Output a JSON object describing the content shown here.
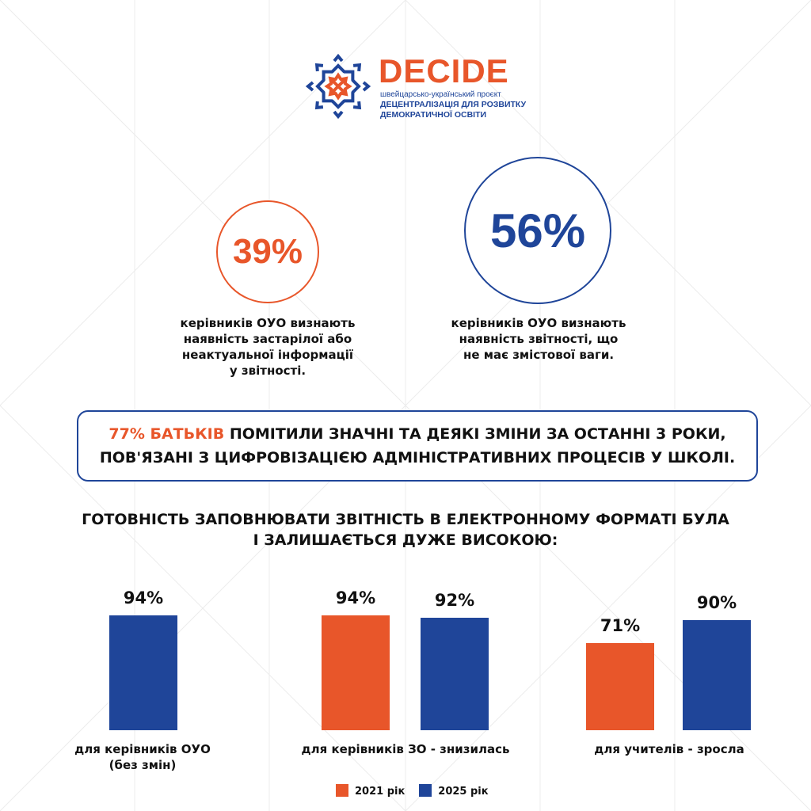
{
  "logo": {
    "title": "DECIDE",
    "subtitle": "швейцарсько-український проєкт",
    "line2": "ДЕЦЕНТРАЛІЗАЦІЯ ДЛЯ РОЗВИТКУ",
    "line3": "ДЕМОКРАТИЧНОЇ ОСВІТИ"
  },
  "stats": [
    {
      "value": "39%",
      "text": "керівників ОУО визнають\nнаявність застарілої або\nнеактуальної інформації\nу звітності.",
      "color": "#E8562A"
    },
    {
      "value": "56%",
      "text": "керівників ОУО визнають\nнаявність звітності, що\nне має змістової ваги.",
      "color": "#1F4599"
    }
  ],
  "callout": {
    "highlight": "77% БАТЬКІВ",
    "line1_rest": " ПОМІТИЛИ ЗНАЧНІ ТА ДЕЯКІ  ЗМІНИ ЗА ОСТАННІ 3 РОКИ,",
    "line2": "ПОВ'ЯЗАНІ  З  ЦИФРОВІЗАЦІЄЮ  АДМІНІСТРАТИВНИХ  ПРОЦЕСІВ У ШКОЛІ."
  },
  "chart_data": {
    "type": "bar",
    "title": "ГОТОВНІСТЬ ЗАПОВНЮВАТИ ЗВІТНІСТЬ В ЕЛЕКТРОННОМУ ФОРМАТІ БУЛА І ЗАЛИШАЄТЬСЯ ДУЖЕ ВИСОКОЮ:",
    "title_line1": "ГОТОВНІСТЬ ЗАПОВНЮВАТИ ЗВІТНІСТЬ В ЕЛЕКТРОННОМУ ФОРМАТІ БУЛА",
    "title_line2": "І ЗАЛИШАЄТЬСЯ ДУЖЕ ВИСОКОЮ:",
    "ylim": [
      0,
      100
    ],
    "legend": [
      {
        "label": "2021 рік",
        "color": "#E8562A"
      },
      {
        "label": "2025 рік",
        "color": "#1F4599"
      }
    ],
    "groups": [
      {
        "label": "для керівників ОУО\n(без змін)",
        "bars": [
          {
            "series": "2025 рік",
            "value": 94,
            "label": "94%"
          }
        ]
      },
      {
        "label": "для керівників ЗО - знизилась",
        "bars": [
          {
            "series": "2021 рік",
            "value": 94,
            "label": "94%"
          },
          {
            "series": "2025 рік",
            "value": 92,
            "label": "92%"
          }
        ]
      },
      {
        "label": "для учителів - зросла",
        "bars": [
          {
            "series": "2021 рік",
            "value": 71,
            "label": "71%"
          },
          {
            "series": "2025 рік",
            "value": 90,
            "label": "90%"
          }
        ]
      }
    ]
  }
}
